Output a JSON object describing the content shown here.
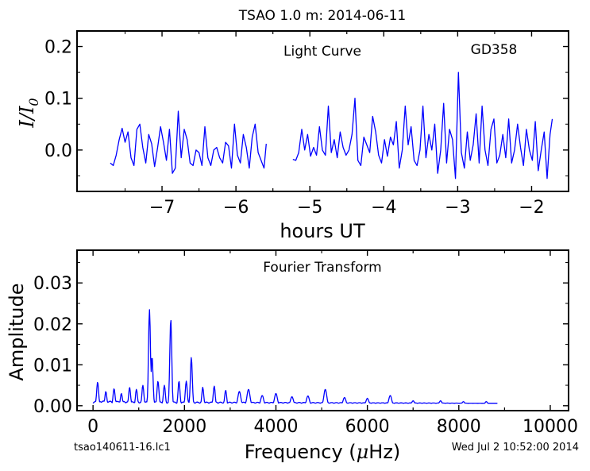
{
  "figure": {
    "title": "TSAO 1.0 m:  2014-06-11",
    "footer_left": "tsao140611-16.lc1",
    "footer_right": "Wed Jul  2 10:52:00 2014"
  },
  "chart_data": [
    {
      "type": "line",
      "name": "light-curve",
      "annotation_center": "Light Curve",
      "annotation_right": "GD358",
      "ylabel_base": "I/I",
      "ylabel_sub": "0",
      "xlabel": "hours UT",
      "xlim": [
        -8.15,
        -1.5
      ],
      "ylim": [
        -0.08,
        0.23
      ],
      "xticks": [
        -7,
        -6,
        -5,
        -4,
        -3,
        -2
      ],
      "xtick_labels": [
        "−7",
        "−6",
        "−5",
        "−4",
        "−3",
        "−2"
      ],
      "yticks": [
        0.0,
        0.1,
        0.2
      ],
      "ytick_labels": [
        "0.0",
        "0.1",
        "0.2"
      ],
      "color": "#0000ff",
      "grid": false,
      "segments": [
        {
          "x": [
            -7.7,
            -7.66,
            -7.62,
            -7.58,
            -7.54,
            -7.5,
            -7.46,
            -7.42,
            -7.38,
            -7.34,
            -7.3,
            -7.26,
            -7.22,
            -7.18,
            -7.14,
            -7.1,
            -7.06,
            -7.02,
            -6.98,
            -6.94,
            -6.9,
            -6.86,
            -6.82,
            -6.78,
            -6.74,
            -6.7,
            -6.66,
            -6.62,
            -6.58,
            -6.54,
            -6.5,
            -6.46,
            -6.42,
            -6.38,
            -6.34,
            -6.3,
            -6.26,
            -6.22,
            -6.18,
            -6.14,
            -6.1,
            -6.06,
            -6.02,
            -5.98,
            -5.94,
            -5.9,
            -5.86,
            -5.82,
            -5.78,
            -5.74,
            -5.7,
            -5.66,
            -5.62,
            -5.59
          ],
          "y": [
            -0.025,
            -0.03,
            -0.01,
            0.02,
            0.042,
            0.015,
            0.035,
            -0.015,
            -0.03,
            0.04,
            0.05,
            0.005,
            -0.025,
            0.03,
            0.012,
            -0.032,
            0.005,
            0.045,
            0.015,
            -0.02,
            0.04,
            -0.045,
            -0.035,
            0.075,
            -0.015,
            0.04,
            0.02,
            -0.025,
            -0.03,
            0.0,
            -0.005,
            -0.03,
            0.045,
            -0.015,
            -0.03,
            0.0,
            0.005,
            -0.015,
            -0.025,
            0.015,
            0.008,
            -0.035,
            0.05,
            -0.01,
            -0.025,
            0.03,
            0.005,
            -0.035,
            0.025,
            0.05,
            -0.005,
            -0.02,
            -0.035,
            0.012
          ]
        },
        {
          "x": [
            -5.23,
            -5.19,
            -5.15,
            -5.11,
            -5.07,
            -5.03,
            -4.99,
            -4.95,
            -4.91,
            -4.87,
            -4.83,
            -4.79,
            -4.75,
            -4.71,
            -4.67,
            -4.63,
            -4.59,
            -4.55,
            -4.51,
            -4.47,
            -4.43,
            -4.39,
            -4.35,
            -4.31,
            -4.27,
            -4.23,
            -4.19,
            -4.15,
            -4.11,
            -4.07,
            -4.03,
            -3.99,
            -3.95,
            -3.91,
            -3.87,
            -3.83,
            -3.79,
            -3.75,
            -3.71,
            -3.67,
            -3.63,
            -3.59,
            -3.55,
            -3.51,
            -3.47,
            -3.43,
            -3.39,
            -3.35,
            -3.31,
            -3.27,
            -3.23,
            -3.19,
            -3.15,
            -3.11,
            -3.07,
            -3.03,
            -2.99,
            -2.95,
            -2.91,
            -2.87,
            -2.83,
            -2.79,
            -2.75,
            -2.71,
            -2.67,
            -2.63,
            -2.59,
            -2.55,
            -2.51,
            -2.47,
            -2.43,
            -2.39,
            -2.35,
            -2.31,
            -2.27,
            -2.23,
            -2.19,
            -2.15,
            -2.11,
            -2.07,
            -2.03,
            -1.99,
            -1.95,
            -1.91,
            -1.87,
            -1.83,
            -1.79,
            -1.75,
            -1.72
          ],
          "y": [
            -0.018,
            -0.02,
            -0.005,
            0.04,
            0.0,
            0.03,
            -0.012,
            0.005,
            -0.01,
            0.045,
            0.0,
            -0.01,
            0.085,
            -0.005,
            0.02,
            -0.015,
            0.035,
            0.005,
            -0.01,
            0.0,
            0.03,
            0.1,
            -0.02,
            -0.03,
            0.025,
            0.01,
            -0.005,
            0.065,
            0.035,
            -0.01,
            -0.025,
            0.02,
            -0.012,
            0.025,
            0.01,
            0.055,
            -0.035,
            0.0,
            0.085,
            0.01,
            0.045,
            -0.02,
            -0.03,
            0.0,
            0.085,
            -0.015,
            0.03,
            0.0,
            0.05,
            -0.045,
            0.0,
            0.09,
            -0.025,
            0.04,
            0.02,
            -0.055,
            0.15,
            -0.005,
            -0.035,
            0.035,
            -0.02,
            0.01,
            0.07,
            -0.025,
            0.085,
            0.0,
            -0.03,
            0.04,
            0.06,
            -0.025,
            -0.01,
            0.03,
            -0.015,
            0.06,
            -0.025,
            0.0,
            0.05,
            0.005,
            -0.03,
            0.04,
            0.0,
            -0.02,
            0.055,
            -0.04,
            0.0,
            0.035,
            -0.055,
            0.03,
            0.06
          ]
        }
      ]
    },
    {
      "type": "line",
      "name": "fourier-transform",
      "annotation_center": "Fourier Transform",
      "ylabel": "Amplitude",
      "xlabel_base": "Frequency (",
      "xlabel_mu": "μ",
      "xlabel_end": "Hz)",
      "xlim": [
        -350,
        10400
      ],
      "ylim": [
        -0.0012,
        0.038
      ],
      "xticks": [
        0,
        2000,
        4000,
        6000,
        8000,
        10000
      ],
      "xtick_labels": [
        "0",
        "2000",
        "4000",
        "6000",
        "8000",
        "10000"
      ],
      "yticks": [
        0.0,
        0.01,
        0.02,
        0.03
      ],
      "ytick_labels": [
        "0.00",
        "0.01",
        "0.02",
        "0.03"
      ],
      "color": "#0000ff",
      "grid": false,
      "x_max": 8850,
      "peaks": [
        {
          "f": 100,
          "a": 0.0058
        },
        {
          "f": 280,
          "a": 0.0035
        },
        {
          "f": 460,
          "a": 0.0042
        },
        {
          "f": 620,
          "a": 0.003
        },
        {
          "f": 800,
          "a": 0.0045
        },
        {
          "f": 950,
          "a": 0.004
        },
        {
          "f": 1090,
          "a": 0.005
        },
        {
          "f": 1235,
          "a": 0.0235
        },
        {
          "f": 1290,
          "a": 0.012
        },
        {
          "f": 1420,
          "a": 0.006
        },
        {
          "f": 1560,
          "a": 0.005
        },
        {
          "f": 1700,
          "a": 0.0212
        },
        {
          "f": 1880,
          "a": 0.006
        },
        {
          "f": 2040,
          "a": 0.006
        },
        {
          "f": 2150,
          "a": 0.0118
        },
        {
          "f": 2400,
          "a": 0.0045
        },
        {
          "f": 2650,
          "a": 0.0048
        },
        {
          "f": 2900,
          "a": 0.0038
        },
        {
          "f": 3200,
          "a": 0.0035
        },
        {
          "f": 3400,
          "a": 0.004
        },
        {
          "f": 3700,
          "a": 0.0025
        },
        {
          "f": 4000,
          "a": 0.003
        },
        {
          "f": 4350,
          "a": 0.0022
        },
        {
          "f": 4700,
          "a": 0.0024
        },
        {
          "f": 5080,
          "a": 0.004
        },
        {
          "f": 5500,
          "a": 0.002
        },
        {
          "f": 6000,
          "a": 0.0018
        },
        {
          "f": 6500,
          "a": 0.0025
        },
        {
          "f": 7000,
          "a": 0.0012
        },
        {
          "f": 7600,
          "a": 0.0012
        },
        {
          "f": 8100,
          "a": 0.001
        },
        {
          "f": 8600,
          "a": 0.001
        }
      ]
    }
  ]
}
